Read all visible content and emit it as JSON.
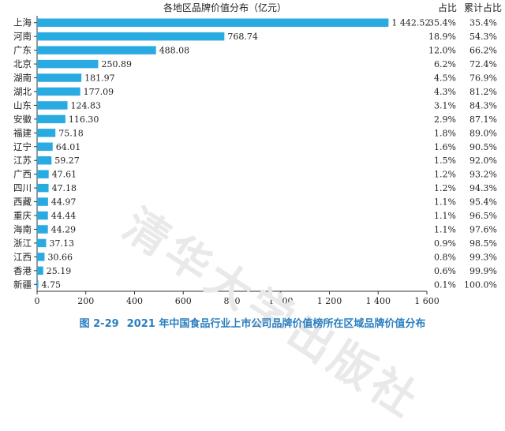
{
  "chart_data": {
    "type": "bar",
    "orientation": "horizontal",
    "title": "各地区品牌价值分布（亿元）",
    "categories": [
      "上海",
      "河南",
      "广东",
      "北京",
      "湖南",
      "湖北",
      "山东",
      "安徽",
      "福建",
      "辽宁",
      "江苏",
      "广西",
      "四川",
      "西藏",
      "重庆",
      "海南",
      "浙江",
      "江西",
      "香港",
      "新疆"
    ],
    "values": [
      1442.52,
      768.74,
      488.08,
      250.89,
      181.97,
      177.09,
      124.83,
      116.3,
      75.18,
      64.01,
      59.27,
      47.61,
      47.18,
      44.97,
      44.44,
      44.29,
      37.13,
      30.66,
      25.19,
      4.75
    ],
    "value_labels": [
      "1 442.52",
      "768.74",
      "488.08",
      "250.89",
      "181.97",
      "177.09",
      "124.83",
      "116.30",
      "75.18",
      "64.01",
      "59.27",
      "47.61",
      "47.18",
      "44.97",
      "44.44",
      "44.29",
      "37.13",
      "30.66",
      "25.19",
      "4.75"
    ],
    "share_header": "占比",
    "shares": [
      "35.4%",
      "18.9%",
      "12.0%",
      "6.2%",
      "4.5%",
      "4.3%",
      "3.1%",
      "2.9%",
      "1.8%",
      "1.6%",
      "1.5%",
      "1.2%",
      "1.2%",
      "1.1%",
      "1.1%",
      "1.1%",
      "0.9%",
      "0.8%",
      "0.6%",
      "0.1%"
    ],
    "cumulative_header": "累计占比",
    "cumulative": [
      "35.4%",
      "54.3%",
      "66.2%",
      "72.4%",
      "76.9%",
      "81.2%",
      "84.3%",
      "87.1%",
      "89.0%",
      "90.5%",
      "92.0%",
      "93.2%",
      "94.3%",
      "95.4%",
      "96.5%",
      "97.6%",
      "98.5%",
      "99.3%",
      "99.9%",
      "100.0%"
    ],
    "xlim": [
      0,
      1600
    ],
    "x_ticks": [
      0,
      200,
      400,
      600,
      800,
      1000,
      1200,
      1400,
      1600
    ],
    "x_tick_labels": [
      "0",
      "200",
      "400",
      "600",
      "800",
      "1 000",
      "1 200",
      "1 400",
      "1 600"
    ],
    "grid": false,
    "colors": {
      "bar": "#29abe2",
      "caption": "#2a7fc0"
    }
  },
  "caption": {
    "figure_number": "图 2-29",
    "text": "2021 年中国食品行业上市公司品牌价值榜所在区域品牌价值分布"
  },
  "watermark": "清华大学出版社"
}
